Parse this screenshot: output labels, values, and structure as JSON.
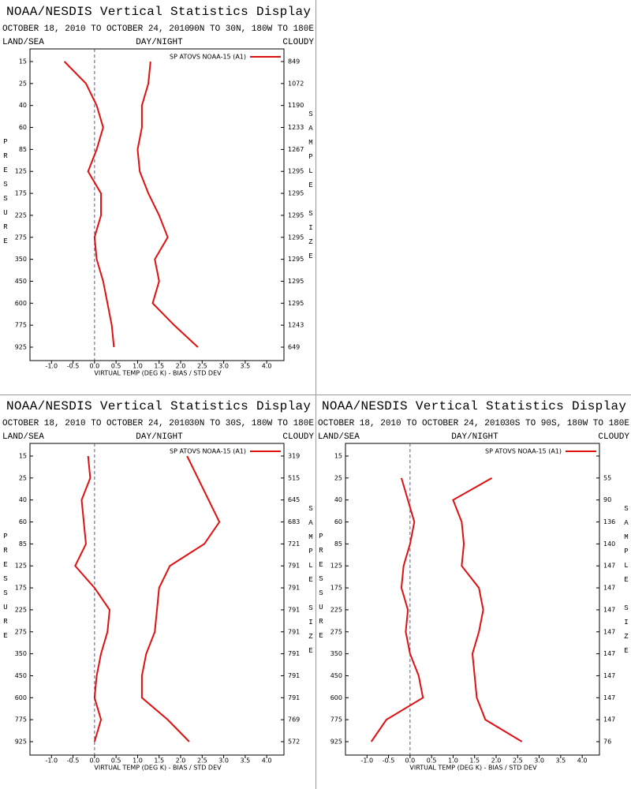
{
  "chart_data": [
    {
      "type": "line",
      "title": "NOAA/NESDIS Vertical Statistics Display",
      "date_range": "OCTOBER 18, 2010 TO OCTOBER 24, 2010",
      "region": "90N TO 30N, 180W TO 180E",
      "left_header": "LAND/SEA",
      "center_header": "DAY/NIGHT",
      "right_header": "CLOUDY",
      "y_label": "PRESSURE",
      "y2_label": "SAMPLE SIZE",
      "x_label": "VIRTUAL TEMP (DEG K) - BIAS / STD DEV",
      "legend": "SP ATOVS NOAA-15 (A1)",
      "categories": [
        "15",
        "25",
        "40",
        "60",
        "85",
        "125",
        "175",
        "225",
        "275",
        "350",
        "450",
        "600",
        "775",
        "925"
      ],
      "sample_sizes": [
        "849",
        "1072",
        "1190",
        "1233",
        "1267",
        "1295",
        "1295",
        "1295",
        "1295",
        "1295",
        "1295",
        "1295",
        "1243",
        "649"
      ],
      "series": [
        {
          "color": "#e01010",
          "values": [
            -0.7,
            -0.2,
            0.05,
            0.2,
            0.05,
            -0.15,
            0.15,
            0.15,
            0.0,
            0.05,
            0.2,
            0.3,
            0.4,
            0.45
          ]
        },
        {
          "color": "#e01010",
          "values": [
            1.3,
            1.25,
            1.1,
            1.1,
            1.0,
            1.05,
            1.25,
            1.5,
            1.7,
            1.4,
            1.5,
            1.35,
            1.85,
            2.4
          ]
        }
      ],
      "xlim": [
        -1.5,
        4.4
      ],
      "xticks": [
        {
          "value": -1,
          "label": "-1.0"
        },
        -0.5,
        {
          "value": 0,
          "label": "0.0"
        },
        0.5,
        {
          "value": 1,
          "label": "1.0"
        },
        1.5,
        {
          "value": 2,
          "label": "2.0"
        },
        2.5,
        {
          "value": 3,
          "label": "3.0"
        },
        3.5,
        {
          "value": 4,
          "label": "4.0"
        }
      ],
      "zero_line": true
    },
    {
      "type": "line",
      "title": "NOAA/NESDIS Vertical Statistics Display",
      "date_range": "OCTOBER 18, 2010 TO OCTOBER 24, 2010",
      "region": "30N TO 30S, 180W TO 180E",
      "left_header": "LAND/SEA",
      "center_header": "DAY/NIGHT",
      "right_header": "CLOUDY",
      "y_label": "PRESSURE",
      "y2_label": "SAMPLE SIZE",
      "x_label": "VIRTUAL TEMP (DEG K) - BIAS / STD DEV",
      "legend": "SP ATOVS NOAA-15 (A1)",
      "categories": [
        "15",
        "25",
        "40",
        "60",
        "85",
        "125",
        "175",
        "225",
        "275",
        "350",
        "450",
        "600",
        "775",
        "925"
      ],
      "sample_sizes": [
        "319",
        "515",
        "645",
        "683",
        "721",
        "791",
        "791",
        "791",
        "791",
        "791",
        "791",
        "791",
        "769",
        "572"
      ],
      "series": [
        {
          "color": "#e01010",
          "values": [
            -0.15,
            -0.1,
            -0.3,
            -0.25,
            -0.2,
            -0.45,
            0.0,
            0.35,
            0.3,
            0.15,
            0.05,
            0.0,
            0.15,
            0.0
          ]
        },
        {
          "color": "#e01010",
          "values": [
            2.15,
            2.4,
            2.65,
            2.9,
            2.55,
            1.75,
            1.5,
            1.45,
            1.4,
            1.2,
            1.1,
            1.1,
            1.7,
            2.2
          ]
        }
      ],
      "xlim": [
        -1.5,
        4.4
      ],
      "xticks": [
        {
          "value": -1,
          "label": "-1.0"
        },
        -0.5,
        {
          "value": 0,
          "label": "0.0"
        },
        0.5,
        {
          "value": 1,
          "label": "1.0"
        },
        1.5,
        {
          "value": 2,
          "label": "2.0"
        },
        2.5,
        {
          "value": 3,
          "label": "3.0"
        },
        3.5,
        {
          "value": 4,
          "label": "4.0"
        }
      ],
      "zero_line": true
    },
    {
      "type": "line",
      "title": "NOAA/NESDIS Vertical Statistics Display",
      "date_range": "OCTOBER 18, 2010 TO OCTOBER 24, 2010",
      "region": "30S TO 90S, 180W TO 180E",
      "left_header": "LAND/SEA",
      "center_header": "DAY/NIGHT",
      "right_header": "CLOUDY",
      "y_label": "PRESSURE",
      "y2_label": "SAMPLE SIZE",
      "x_label": "VIRTUAL TEMP (DEG K) - BIAS / STD DEV",
      "legend": "SP ATOVS NOAA-15 (A1)",
      "categories": [
        "15",
        "25",
        "40",
        "60",
        "85",
        "125",
        "175",
        "225",
        "275",
        "350",
        "450",
        "600",
        "775",
        "925"
      ],
      "sample_sizes": [
        null,
        "55",
        "90",
        "136",
        "140",
        "147",
        "147",
        "147",
        "147",
        "147",
        "147",
        "147",
        "147",
        "76"
      ],
      "series": [
        {
          "color": "#e01010",
          "values": [
            null,
            -0.2,
            -0.05,
            0.1,
            0.0,
            -0.15,
            -0.2,
            -0.05,
            -0.1,
            0.0,
            0.2,
            0.3,
            -0.55,
            -0.9
          ]
        },
        {
          "color": "#e01010",
          "values": [
            null,
            1.9,
            1.0,
            1.2,
            1.25,
            1.2,
            1.6,
            1.7,
            1.6,
            1.45,
            1.5,
            1.55,
            1.75,
            2.6
          ]
        }
      ],
      "xlim": [
        -1.5,
        4.4
      ],
      "xticks": [
        {
          "value": -1,
          "label": "-1.0"
        },
        -0.5,
        {
          "value": 0,
          "label": "0.0"
        },
        0.5,
        {
          "value": 1,
          "label": "1.0"
        },
        1.5,
        {
          "value": 2,
          "label": "2.0"
        },
        2.5,
        {
          "value": 3,
          "label": "3.0"
        },
        3.5,
        {
          "value": 4,
          "label": "4.0"
        }
      ],
      "zero_line": true
    }
  ]
}
